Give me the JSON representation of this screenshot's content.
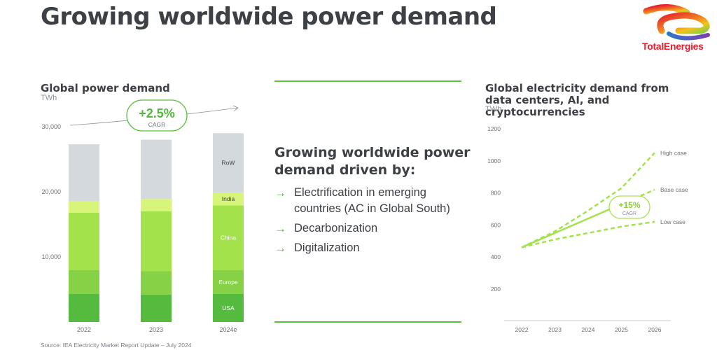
{
  "slide": {
    "title": "Growing worldwide power demand",
    "logo_text": "TotalEnergies",
    "source": "Source: IEA Electricity Market Report Update – July 2024",
    "accent_color": "#5cbf3c"
  },
  "drivers": {
    "heading": "Growing worldwide power demand driven by:",
    "arrow_icon": "→",
    "items": [
      "Electrification in emerging countries (AC in Global South)",
      "Decarbonization",
      "Digitalization"
    ]
  },
  "chart_data": [
    {
      "type": "bar",
      "stacked": true,
      "title": "Global power demand",
      "unit": "TWh",
      "categories": [
        "2022",
        "2023",
        "2024e"
      ],
      "y_ticks": [
        "10,000",
        "20,000",
        "30,000"
      ],
      "y_tick_values": [
        10000,
        20000,
        30000
      ],
      "ylim": [
        0,
        30000
      ],
      "grid": false,
      "series": [
        {
          "name": "USA",
          "color": "#55bb3e",
          "values": [
            4300,
            4200,
            4300
          ]
        },
        {
          "name": "Europe",
          "color": "#86d146",
          "values": [
            3700,
            3600,
            3700
          ]
        },
        {
          "name": "China",
          "color": "#a4e24c",
          "values": [
            8800,
            9200,
            9900
          ]
        },
        {
          "name": "India",
          "color": "#d8f57b",
          "values": [
            1800,
            1900,
            2000
          ]
        },
        {
          "name": "RoW",
          "color": "#d3d9dd",
          "values": [
            8700,
            9100,
            9100
          ]
        }
      ],
      "annotation": {
        "value": "+2.5%",
        "label": "CAGR"
      }
    },
    {
      "type": "line",
      "title": "Global electricity demand from data centers, AI, and cryptocurrencies",
      "unit": "TWh",
      "x": [
        "2022",
        "2023",
        "2024",
        "2025",
        "2026"
      ],
      "y_ticks": [
        "200",
        "400",
        "600",
        "800",
        "1000",
        "1200"
      ],
      "y_tick_values": [
        200,
        400,
        600,
        800,
        1000,
        1200
      ],
      "ylim": [
        150,
        1200
      ],
      "grid": false,
      "series": [
        {
          "name": "High case",
          "style": "dashed",
          "values": [
            460,
            560,
            690,
            830,
            1050
          ]
        },
        {
          "name": "Base case",
          "style": "solid-to-dashed",
          "values": [
            460,
            550,
            640,
            730,
            820
          ]
        },
        {
          "name": "Low case",
          "style": "dashed",
          "values": [
            460,
            510,
            550,
            590,
            620
          ]
        }
      ],
      "annotation": {
        "value": "+15%",
        "label": "CAGR"
      }
    }
  ]
}
